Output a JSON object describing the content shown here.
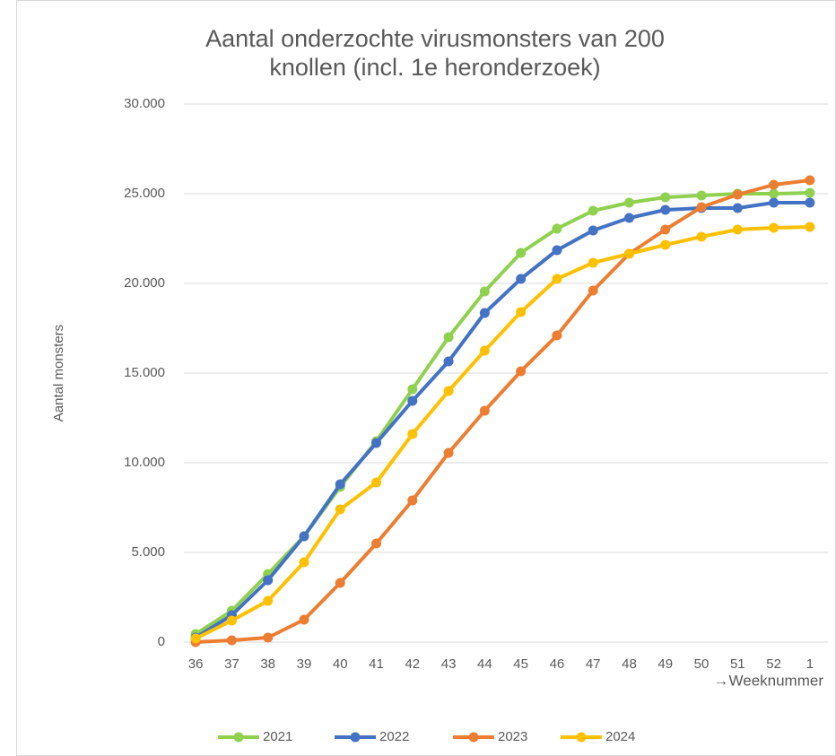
{
  "chart_data": {
    "type": "line",
    "title": [
      "Aantal onderzochte virusmonsters van 200",
      "knollen (incl. 1e heronderzoek)"
    ],
    "y_label": "Aantal monsters",
    "x_label": "→Weeknummer",
    "categories": [
      "36",
      "37",
      "38",
      "39",
      "40",
      "41",
      "42",
      "43",
      "44",
      "45",
      "46",
      "47",
      "48",
      "49",
      "50",
      "51",
      "52",
      "1"
    ],
    "ylim": [
      0,
      30000
    ],
    "yticks": [
      0,
      {
        "value": 5000,
        "label": "5.000"
      },
      {
        "value": 10000,
        "label": "10.000"
      },
      {
        "value": 15000,
        "label": "15.000"
      },
      {
        "value": 20000,
        "label": "20.000"
      },
      {
        "value": 25000,
        "label": "25.000"
      },
      {
        "value": 30000,
        "label": "30.000"
      }
    ],
    "grid": true,
    "legend": "bottom",
    "series": [
      {
        "name": "2021",
        "color": "#8fd14f",
        "values": [
          450,
          1750,
          3800,
          5900,
          8650,
          11200,
          14100,
          17000,
          19550,
          21700,
          23050,
          24050,
          24500,
          24800,
          24900,
          25000,
          25000,
          25050
        ]
      },
      {
        "name": "2022",
        "color": "#4472c4",
        "values": [
          250,
          1500,
          3450,
          5900,
          8800,
          11100,
          13450,
          15650,
          18350,
          20250,
          21850,
          22950,
          23650,
          24100,
          24200,
          24200,
          24500,
          24500
        ]
      },
      {
        "name": "2023",
        "color": "#ed7d31",
        "values": [
          0,
          100,
          250,
          1250,
          3300,
          5500,
          7900,
          10550,
          12900,
          15100,
          17100,
          19600,
          21650,
          23000,
          24250,
          24950,
          25500,
          25750
        ]
      },
      {
        "name": "2024",
        "color": "#ffc000",
        "values": [
          200,
          1200,
          2300,
          4450,
          7400,
          8900,
          11600,
          14000,
          16250,
          18400,
          20250,
          21150,
          21650,
          22150,
          22600,
          23000,
          23100,
          23150
        ]
      }
    ]
  }
}
